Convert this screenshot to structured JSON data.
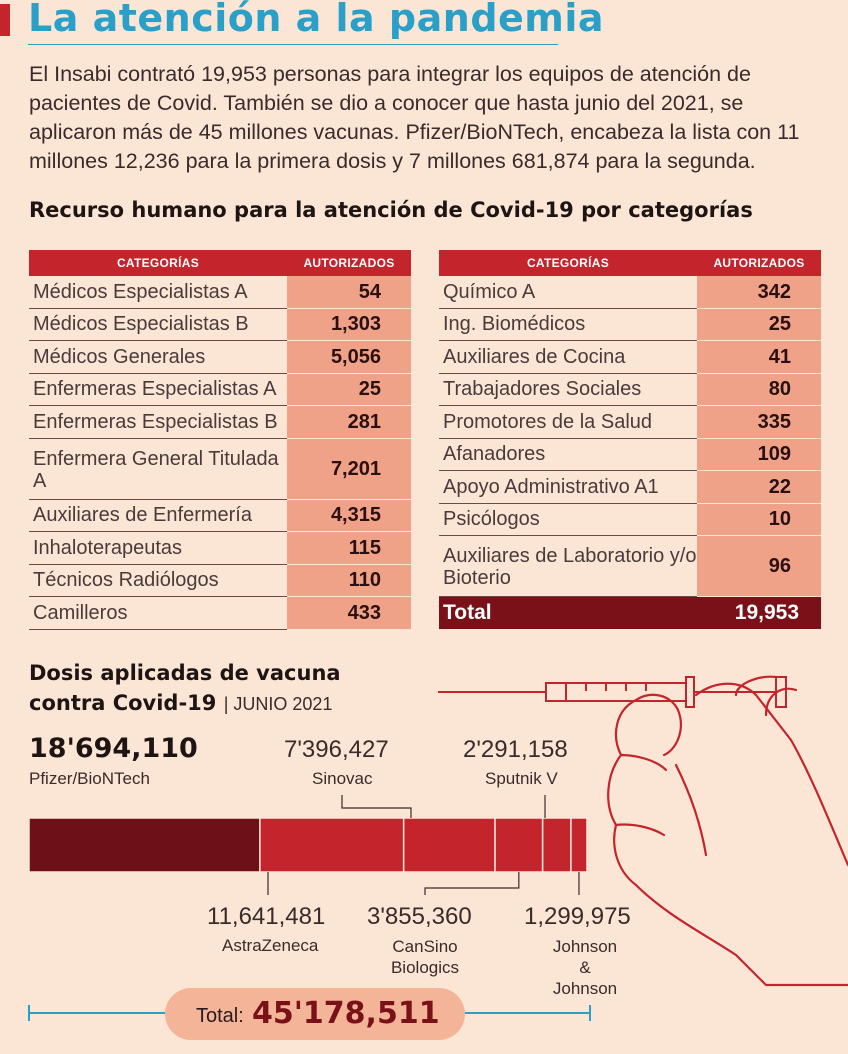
{
  "title": "La atención a la pandemia",
  "intro": "El Insabi contrató 19,953 personas para integrar los equipos de atención de pacientes de Covid. También se dio a conocer que hasta junio del 2021, se aplicaron más de 45 millones vacunas. Pfizer/BioNTech, encabeza la lista con 11 millones 12,236 para la primera dosis y 7 millones 681,874 para la segunda.",
  "section_title": "Recurso humano para la atención de Covid-19 por categorías",
  "table_headers": {
    "categoria": "CATEGORÍAS",
    "autorizados": "AUTORIZADOS"
  },
  "table_left": [
    {
      "categoria": "Médicos Especialistas A",
      "autorizados": "54"
    },
    {
      "categoria": "Médicos Especialistas B",
      "autorizados": "1,303"
    },
    {
      "categoria": "Médicos Generales",
      "autorizados": "5,056"
    },
    {
      "categoria": "Enfermeras Especialistas A",
      "autorizados": "25"
    },
    {
      "categoria": "Enfermeras Especialistas B",
      "autorizados": "281"
    },
    {
      "categoria": "Enfermera General Titulada A",
      "autorizados": "7,201"
    },
    {
      "categoria": "Auxiliares de Enfermería",
      "autorizados": "4,315"
    },
    {
      "categoria": "Inhaloterapeutas",
      "autorizados": "115"
    },
    {
      "categoria": "Técnicos Radiólogos",
      "autorizados": "110"
    },
    {
      "categoria": "Camilleros",
      "autorizados": "433"
    }
  ],
  "table_right": [
    {
      "categoria": "Químico A",
      "autorizados": "342"
    },
    {
      "categoria": "Ing. Biomédicos",
      "autorizados": "25"
    },
    {
      "categoria": "Auxiliares de Cocina",
      "autorizados": "41"
    },
    {
      "categoria": "Trabajadores Sociales",
      "autorizados": "80"
    },
    {
      "categoria": "Promotores de la Salud",
      "autorizados": "335"
    },
    {
      "categoria": "Afanadores",
      "autorizados": "109"
    },
    {
      "categoria": "Apoyo Administrativo A1",
      "autorizados": "22"
    },
    {
      "categoria": "Psicólogos",
      "autorizados": "10"
    },
    {
      "categoria": "Auxiliares de Laboratorio y/o Bioterio",
      "autorizados": "96"
    }
  ],
  "table_total": {
    "label": "Total",
    "value": "19,953"
  },
  "dosis_title": "Dosis aplicadas de vacuna contra Covid-19",
  "dosis_period": "| JUNIO 2021",
  "colors": {
    "header": "#c4242c",
    "value_cell": "#f0a288",
    "total": "#7a1018",
    "title": "#2aa0c8",
    "bar_dark": "#6e1018",
    "bar": "#c4242c"
  },
  "chart_data": {
    "type": "bar",
    "orientation": "horizontal-stacked",
    "series": [
      {
        "name": "Pfizer/BioNTech",
        "value": 18694110,
        "label": "18'694,110"
      },
      {
        "name": "AstraZeneca",
        "value": 11641481,
        "label": "11,641,481"
      },
      {
        "name": "Sinovac",
        "value": 7396427,
        "label": "7'396,427"
      },
      {
        "name": "CanSino Biologics",
        "value": 3855360,
        "label": "3'855,360"
      },
      {
        "name": "Sputnik V",
        "value": 2291158,
        "label": "2'291,158"
      },
      {
        "name": "Johnson & Johnson",
        "value": 1299975,
        "label": "1,299,975"
      }
    ],
    "total": 45178511,
    "total_label": "Total:",
    "total_value": "45'178,511"
  }
}
